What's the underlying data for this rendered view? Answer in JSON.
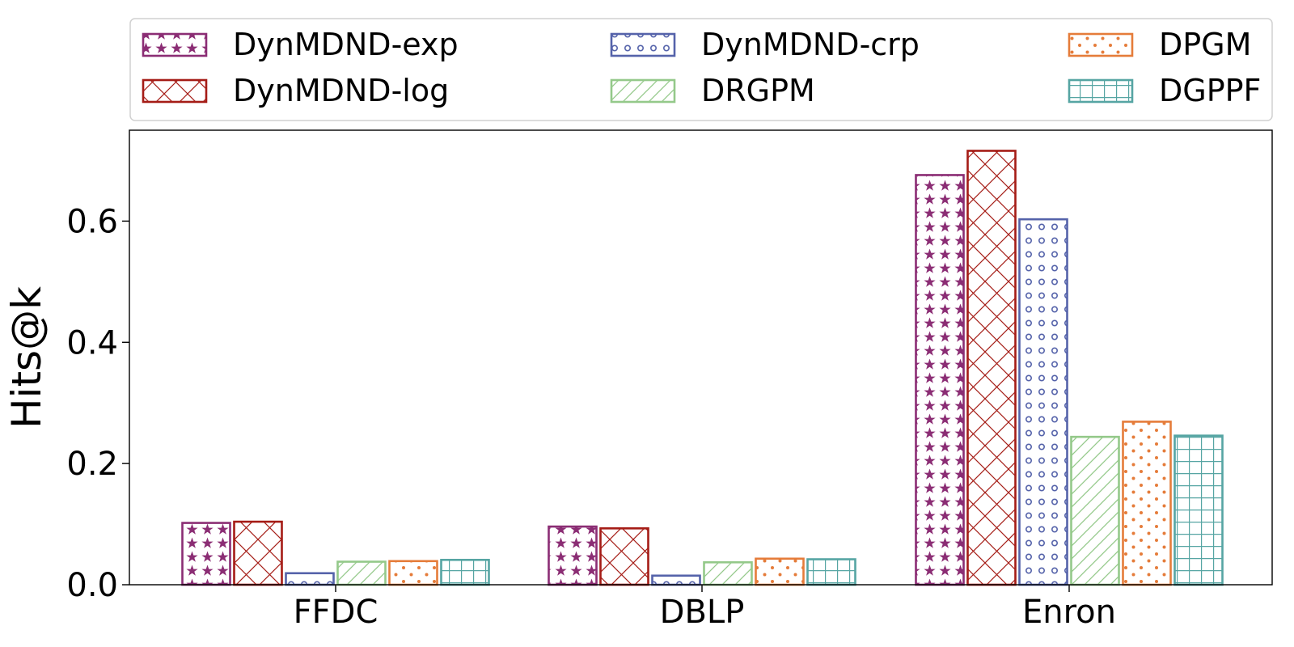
{
  "chart_data": {
    "type": "bar",
    "title": "",
    "xlabel": "",
    "ylabel": "Hits@k",
    "ylim": [
      0,
      0.75
    ],
    "yticks": [
      0.0,
      0.2,
      0.4,
      0.6
    ],
    "ytick_labels": [
      "0.0",
      "0.2",
      "0.4",
      "0.6"
    ],
    "categories": [
      "FFDC",
      "DBLP",
      "Enron"
    ],
    "grid": false,
    "legend_position": "top",
    "series": [
      {
        "name": "DynMDND-exp",
        "color": "#8B2D74",
        "pattern": "stars",
        "values": [
          0.102,
          0.096,
          0.676
        ]
      },
      {
        "name": "DynMDND-log",
        "color": "#A51C16",
        "pattern": "crosshatch",
        "values": [
          0.104,
          0.093,
          0.716
        ]
      },
      {
        "name": "DynMDND-crp",
        "color": "#5563AA",
        "pattern": "circles",
        "values": [
          0.019,
          0.015,
          0.603
        ]
      },
      {
        "name": "DRGPM",
        "color": "#94C98A",
        "pattern": "diagonal",
        "values": [
          0.038,
          0.037,
          0.244
        ]
      },
      {
        "name": "DPGM",
        "color": "#E57C3A",
        "pattern": "dots",
        "values": [
          0.039,
          0.043,
          0.269
        ]
      },
      {
        "name": "DGPPF",
        "color": "#56A5A3",
        "pattern": "grid",
        "values": [
          0.041,
          0.042,
          0.246
        ]
      }
    ]
  }
}
